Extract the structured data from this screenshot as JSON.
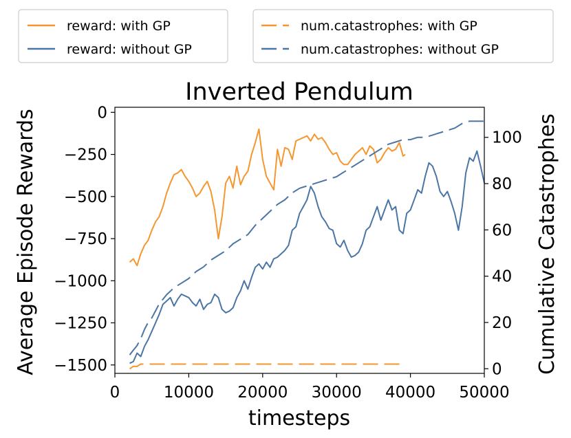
{
  "chart_data": {
    "type": "line",
    "title": "Inverted Pendulum",
    "xlabel": "timesteps",
    "ylabel": "Average Episode Rewards",
    "y2label": "Cumulative Catastrophes",
    "xlim": [
      0,
      50000
    ],
    "ylim": [
      -1550,
      30
    ],
    "y2lim": [
      -2,
      113
    ],
    "xticks": [
      0,
      10000,
      20000,
      30000,
      40000,
      50000
    ],
    "yticks": [
      0,
      -250,
      -500,
      -750,
      -1000,
      -1250,
      -1500
    ],
    "y2ticks": [
      0,
      20,
      40,
      60,
      80,
      100
    ],
    "xtick_labels": [
      "0",
      "10000",
      "20000",
      "30000",
      "40000",
      "50000"
    ],
    "ytick_labels": [
      "0",
      "−250",
      "−500",
      "−750",
      "−1000",
      "−1250",
      "−1500"
    ],
    "y2tick_labels": [
      "0",
      "20",
      "40",
      "60",
      "80",
      "100"
    ],
    "grid": false,
    "legend_left_placement": "above-left",
    "legend_right_placement": "above-right",
    "colors": {
      "orange": "#f5962e",
      "blue": "#4a75a5"
    },
    "series": [
      {
        "name": "reward: with GP",
        "axis": "left",
        "style": "solid",
        "color": "#f5962e",
        "x": [
          2000,
          2500,
          3000,
          3500,
          4000,
          4500,
          5000,
          5500,
          6000,
          6500,
          7000,
          7500,
          8000,
          8500,
          9000,
          9500,
          10000,
          10500,
          11000,
          11500,
          12000,
          12500,
          13000,
          13500,
          14000,
          14500,
          15000,
          15500,
          16000,
          16500,
          17000,
          17500,
          18000,
          18500,
          19000,
          19500,
          20000,
          20500,
          21000,
          21500,
          22000,
          22500,
          23000,
          23500,
          24000,
          24500,
          25000,
          25500,
          26000,
          26500,
          27000,
          27500,
          28000,
          28500,
          29000,
          29500,
          30000,
          30500,
          31000,
          31500,
          32000,
          32500,
          33000,
          33500,
          34000,
          34500,
          35000,
          35500,
          36000,
          36500,
          37000,
          37500,
          38000,
          38500,
          39000,
          39300
        ],
        "values": [
          -890,
          -870,
          -910,
          -840,
          -790,
          -760,
          -700,
          -650,
          -620,
          -560,
          -480,
          -420,
          -370,
          -360,
          -340,
          -380,
          -410,
          -450,
          -500,
          -480,
          -440,
          -410,
          -470,
          -580,
          -750,
          -620,
          -420,
          -380,
          -450,
          -320,
          -430,
          -380,
          -350,
          -250,
          -180,
          -100,
          -280,
          -380,
          -420,
          -460,
          -220,
          -320,
          -210,
          -220,
          -280,
          -170,
          -160,
          -150,
          -140,
          -170,
          -130,
          -160,
          -150,
          -180,
          -220,
          -250,
          -240,
          -290,
          -310,
          -310,
          -280,
          -250,
          -230,
          -210,
          -250,
          -200,
          -220,
          -300,
          -280,
          -240,
          -210,
          -230,
          -220,
          -180,
          -260,
          -250
        ]
      },
      {
        "name": "reward: without GP",
        "axis": "left",
        "style": "solid",
        "color": "#4a75a5",
        "x": [
          2000,
          2500,
          3000,
          3500,
          4000,
          4500,
          5000,
          5500,
          6000,
          6500,
          7000,
          7500,
          8000,
          8500,
          9000,
          9500,
          10000,
          10500,
          11000,
          11500,
          12000,
          12500,
          13000,
          13500,
          14000,
          14500,
          15000,
          15500,
          16000,
          16500,
          17000,
          17500,
          18000,
          18500,
          19000,
          19500,
          20000,
          20500,
          21000,
          21500,
          22000,
          22500,
          23000,
          23500,
          24000,
          24500,
          25000,
          25500,
          26000,
          26500,
          27000,
          27500,
          28000,
          28500,
          29000,
          29500,
          30000,
          30500,
          31000,
          31500,
          32000,
          32500,
          33000,
          33500,
          34000,
          34500,
          35000,
          35500,
          36000,
          36500,
          37000,
          37500,
          38000,
          38500,
          39000,
          39500,
          40000,
          40500,
          41000,
          41500,
          42000,
          42500,
          43000,
          43500,
          44000,
          44500,
          45000,
          45500,
          46000,
          46500,
          47000,
          47500,
          48000,
          48500,
          49000,
          49500,
          50000
        ],
        "values": [
          -1490,
          -1480,
          -1430,
          -1450,
          -1390,
          -1350,
          -1300,
          -1250,
          -1200,
          -1140,
          -1120,
          -1100,
          -1150,
          -1110,
          -1080,
          -1090,
          -1100,
          -1130,
          -1150,
          -1110,
          -1170,
          -1140,
          -1130,
          -1080,
          -1100,
          -1170,
          -1190,
          -1180,
          -1160,
          -1100,
          -1060,
          -1000,
          -1050,
          -980,
          -920,
          -900,
          -930,
          -890,
          -920,
          -870,
          -860,
          -840,
          -820,
          -790,
          -700,
          -680,
          -600,
          -560,
          -520,
          -440,
          -480,
          -560,
          -620,
          -650,
          -690,
          -700,
          -780,
          -800,
          -760,
          -820,
          -860,
          -850,
          -830,
          -780,
          -700,
          -680,
          -620,
          -560,
          -640,
          -580,
          -520,
          -580,
          -560,
          -700,
          -720,
          -600,
          -580,
          -520,
          -460,
          -480,
          -380,
          -300,
          -320,
          -380,
          -470,
          -500,
          -470,
          -530,
          -600,
          -700,
          -560,
          -360,
          -270,
          -290,
          -230,
          -320,
          -420
        ]
      },
      {
        "name": "num.catastrophes: with GP",
        "axis": "right",
        "style": "dashed",
        "color": "#f5962e",
        "x": [
          2000,
          2500,
          3000,
          3500,
          4000,
          39300
        ],
        "values": [
          0,
          1,
          1,
          2,
          2,
          2
        ]
      },
      {
        "name": "num.catastrophes: without GP",
        "axis": "right",
        "style": "dashed",
        "color": "#4a75a5",
        "x": [
          2000,
          2500,
          3000,
          3500,
          4000,
          4500,
          5000,
          5500,
          6000,
          6500,
          7000,
          8000,
          9000,
          10000,
          11000,
          12000,
          13000,
          14000,
          15000,
          16000,
          17000,
          18000,
          19000,
          20000,
          21000,
          22000,
          23000,
          24000,
          25000,
          26000,
          27000,
          28000,
          29000,
          30000,
          31000,
          32000,
          33000,
          34000,
          35000,
          36000,
          37000,
          38000,
          39000,
          40000,
          41000,
          42000,
          43000,
          44000,
          45000,
          46000,
          47000,
          48000,
          49000,
          50000
        ],
        "values": [
          6,
          8,
          10,
          13,
          17,
          20,
          22,
          25,
          28,
          30,
          32,
          35,
          37,
          39,
          42,
          44,
          47,
          49,
          51,
          54,
          56,
          58,
          62,
          65,
          68,
          71,
          73,
          76,
          78,
          79,
          80,
          81,
          82,
          83,
          85,
          87,
          89,
          91,
          93,
          95,
          97,
          98,
          99,
          99,
          100,
          100,
          101,
          102,
          103,
          104,
          106,
          107,
          107,
          107
        ]
      }
    ]
  }
}
